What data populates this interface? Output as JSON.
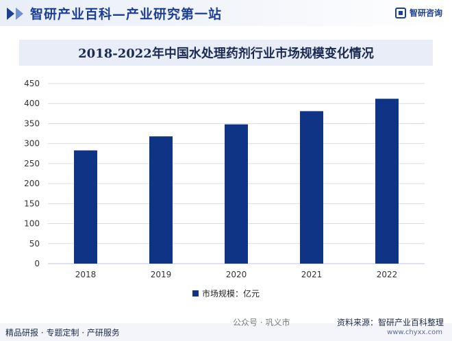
{
  "header": {
    "site_title": "智研产业百科—产业研究第一站",
    "brand": "智研咨询"
  },
  "legend": {
    "label": "市场规模：亿元"
  },
  "footer": {
    "left": "精品研报 · 专题定制 · 产研服务",
    "wechat": "公众号 · 巩义市",
    "source": "资料来源：智研产业百科整理",
    "url": "www.chyxx.com"
  },
  "colors": {
    "bar": "#0f3485",
    "accent": "#1c3f94"
  },
  "chart_data": {
    "type": "bar",
    "title": "2018-2022年中国水处理药剂行业市场规模变化情况",
    "categories": [
      "2018",
      "2019",
      "2020",
      "2021",
      "2022"
    ],
    "series": [
      {
        "name": "市场规模：亿元",
        "values": [
          283,
          318,
          348,
          381,
          412
        ]
      }
    ],
    "ylim": [
      0,
      450
    ],
    "yticks": [
      0,
      50,
      100,
      150,
      200,
      250,
      300,
      350,
      400,
      450
    ],
    "grid": true,
    "legend": "bottom"
  }
}
